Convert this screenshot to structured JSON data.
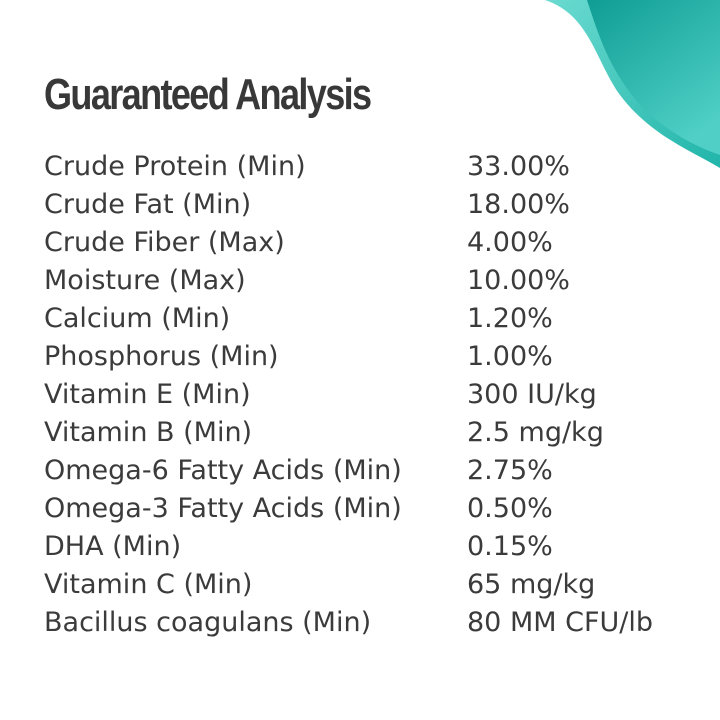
{
  "title": "Guaranteed Analysis",
  "colors": {
    "accent": "#1fb3a8",
    "accent_light": "#5fd6cc",
    "accent_dark": "#0f9a91",
    "text": "#3b3b3b"
  },
  "rows": [
    {
      "name": "Crude Protein (Min)",
      "value": "33.00%"
    },
    {
      "name": "Crude Fat (Min)",
      "value": "18.00%"
    },
    {
      "name": "Crude Fiber (Max)",
      "value": "4.00%"
    },
    {
      "name": "Moisture (Max)",
      "value": "10.00%"
    },
    {
      "name": "Calcium (Min)",
      "value": "1.20%"
    },
    {
      "name": "Phosphorus (Min)",
      "value": "1.00%"
    },
    {
      "name": "Vitamin E (Min)",
      "value": "300 IU/kg"
    },
    {
      "name": "Vitamin B (Min)",
      "value": "2.5 mg/kg"
    },
    {
      "name": "Omega-6 Fatty Acids (Min)",
      "value": "2.75%"
    },
    {
      "name": "Omega-3 Fatty Acids (Min)",
      "value": "0.50%"
    },
    {
      "name": "DHA (Min)",
      "value": "0.15%"
    },
    {
      "name": "Vitamin C (Min)",
      "value": "65 mg/kg"
    },
    {
      "name": "Bacillus coagulans (Min)",
      "value": "80 MM CFU/lb"
    }
  ]
}
